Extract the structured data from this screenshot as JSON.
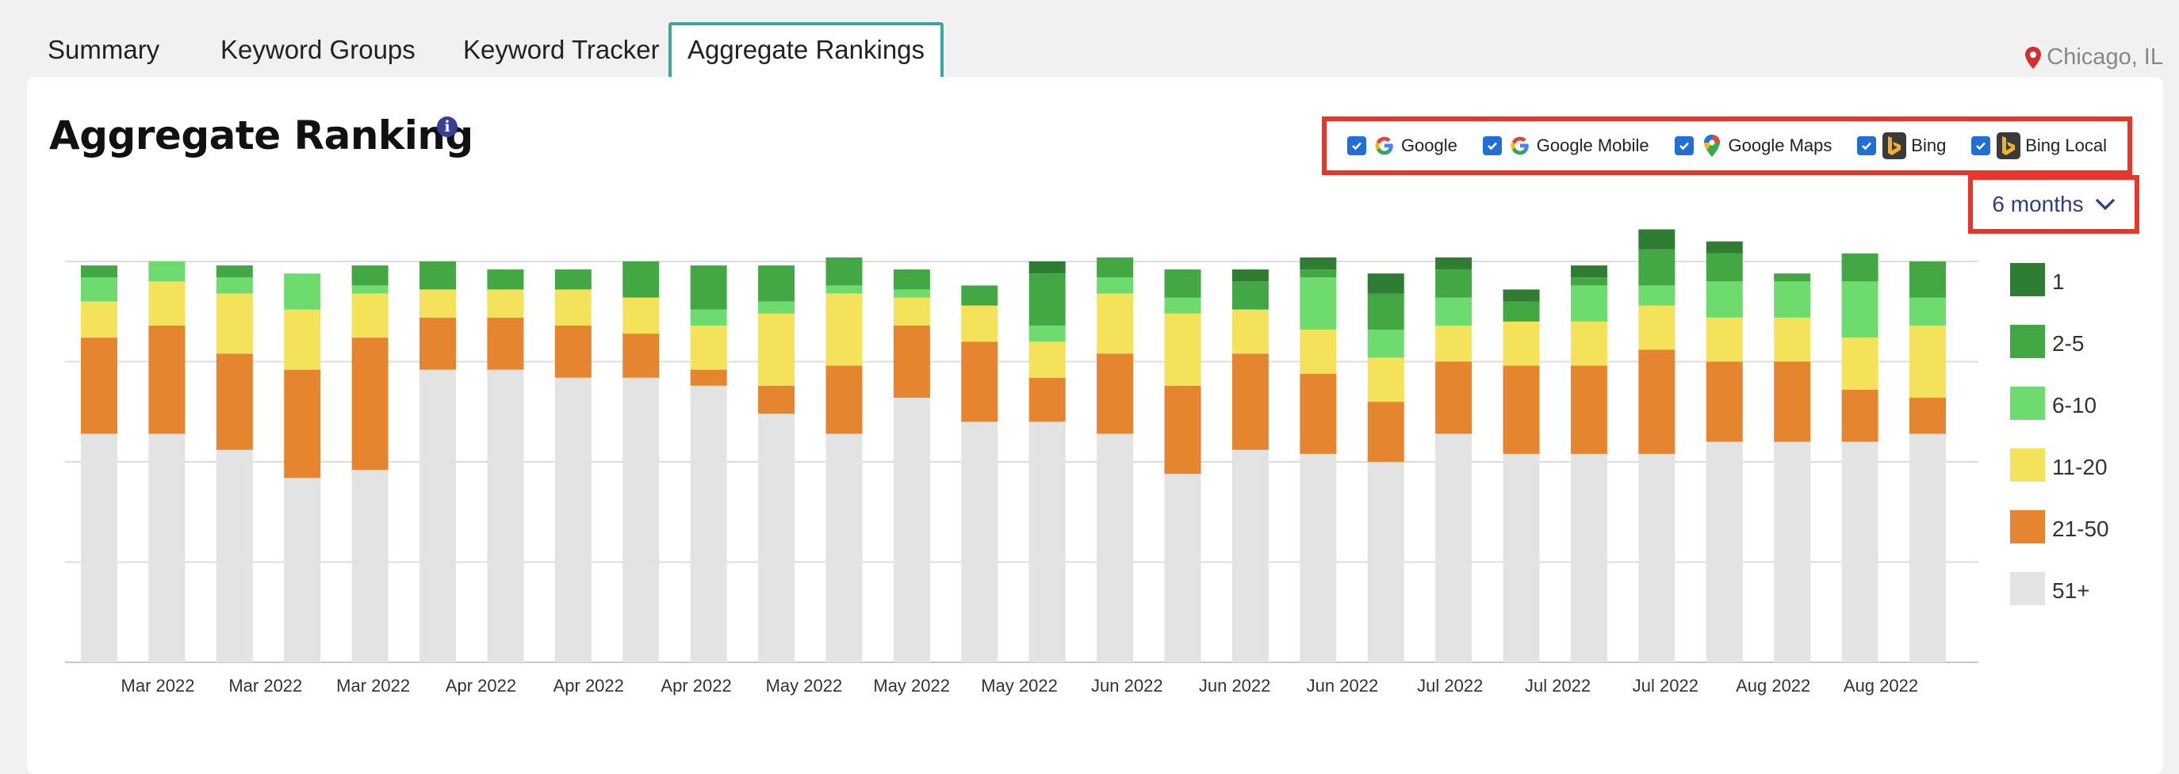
{
  "tabs": [
    {
      "label": "Summary",
      "active": false
    },
    {
      "label": "Keyword Groups",
      "active": false
    },
    {
      "label": "Keyword Tracker",
      "active": false
    },
    {
      "label": "Aggregate Rankings",
      "active": true
    }
  ],
  "location": {
    "icon": "map-pin-icon",
    "text": "Chicago, IL"
  },
  "title": "Aggregate Ranking",
  "info_icon": "info-icon",
  "engines": [
    {
      "label": "Google",
      "checked": true,
      "icon": "google-icon"
    },
    {
      "label": "Google Mobile",
      "checked": true,
      "icon": "google-icon"
    },
    {
      "label": "Google Maps",
      "checked": true,
      "icon": "google-maps-icon"
    },
    {
      "label": "Bing",
      "checked": true,
      "icon": "bing-icon"
    },
    {
      "label": "Bing Local",
      "checked": true,
      "icon": "bing-icon"
    }
  ],
  "date_range": {
    "value": "6 months",
    "icon": "chevron-down-icon"
  },
  "colors": {
    "1": "#2e7d32",
    "2-5": "#43a843",
    "6-10": "#6edb6e",
    "11-20": "#f4e25a",
    "21-50": "#e58530",
    "51+": "#e3e3e3",
    "highlight_border": "#e8362a",
    "active_tab_border": "#3aa6a6",
    "link": "#2c3a8f"
  },
  "chart_data": {
    "type": "bar",
    "stacked": true,
    "normalized": true,
    "ylim": [
      0,
      100
    ],
    "grid": true,
    "legend_position": "right",
    "x_tick_labels": [
      "Mar 2022",
      "Mar 2022",
      "Mar 2022",
      "Apr 2022",
      "Apr 2022",
      "Apr 2022",
      "May 2022",
      "May 2022",
      "May 2022",
      "Jun 2022",
      "Jun 2022",
      "Jun 2022",
      "Jul 2022",
      "Jul 2022",
      "Jul 2022",
      "Aug 2022",
      "Aug 2022"
    ],
    "series": [
      {
        "name": "1",
        "values": [
          0,
          0,
          0,
          0,
          0,
          0,
          0,
          0,
          0,
          0,
          0,
          0,
          0,
          0,
          3,
          0,
          0,
          3,
          3,
          5,
          3,
          3,
          3,
          5,
          3,
          0,
          0,
          0
        ]
      },
      {
        "name": "2-5",
        "values": [
          3,
          0,
          3,
          0,
          5,
          7,
          5,
          5,
          9,
          11,
          9,
          7,
          5,
          5,
          13,
          5,
          7,
          7,
          2,
          9,
          7,
          5,
          2,
          9,
          7,
          2,
          7,
          9
        ]
      },
      {
        "name": "6-10",
        "values": [
          6,
          5,
          4,
          9,
          2,
          0,
          0,
          0,
          0,
          4,
          3,
          2,
          2,
          0,
          4,
          4,
          4,
          0,
          13,
          7,
          7,
          0,
          9,
          5,
          9,
          9,
          14,
          7
        ]
      },
      {
        "name": "11-20",
        "values": [
          9,
          11,
          15,
          15,
          11,
          7,
          7,
          9,
          9,
          11,
          18,
          18,
          7,
          9,
          9,
          15,
          18,
          11,
          11,
          11,
          9,
          11,
          11,
          11,
          11,
          11,
          13,
          18
        ]
      },
      {
        "name": "21-50",
        "values": [
          24,
          27,
          24,
          27,
          33,
          13,
          13,
          13,
          11,
          4,
          7,
          17,
          18,
          20,
          11,
          20,
          22,
          24,
          20,
          15,
          18,
          22,
          22,
          26,
          20,
          20,
          13,
          9
        ]
      },
      {
        "name": "51+",
        "values": [
          57,
          57,
          53,
          46,
          48,
          73,
          73,
          71,
          71,
          69,
          62,
          57,
          66,
          60,
          60,
          57,
          47,
          53,
          52,
          50,
          57,
          52,
          52,
          52,
          55,
          55,
          55,
          57
        ]
      }
    ]
  }
}
